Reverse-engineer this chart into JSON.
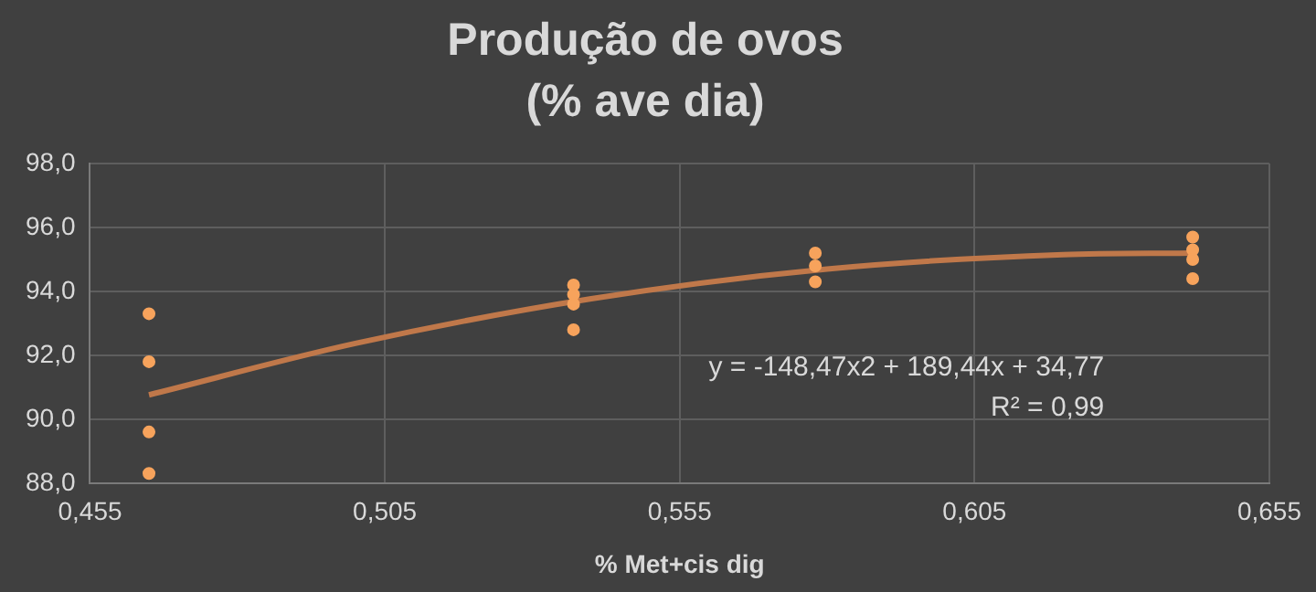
{
  "chart_data": {
    "type": "scatter",
    "title": "Produção de ovos\n(% ave dia)",
    "xlabel": "% Met+cis dig",
    "xlim": [
      0.455,
      0.655
    ],
    "xticks": [
      {
        "value": 0.455,
        "label": "0,455"
      },
      {
        "value": 0.505,
        "label": "0,505"
      },
      {
        "value": 0.555,
        "label": "0,555"
      },
      {
        "value": 0.605,
        "label": "0,605"
      },
      {
        "value": 0.655,
        "label": "0,655"
      }
    ],
    "ylim": [
      88,
      98
    ],
    "yticks": [
      {
        "value": 88,
        "label": "88,0"
      },
      {
        "value": 90,
        "label": "90,0"
      },
      {
        "value": 92,
        "label": "92,0"
      },
      {
        "value": 94,
        "label": "94,0"
      },
      {
        "value": 96,
        "label": "96,0"
      },
      {
        "value": 98,
        "label": "98,0"
      }
    ],
    "grid": true,
    "legend": false,
    "series": [
      {
        "marker": "circle",
        "color": "#f7a35c",
        "x": [
          0.465,
          0.465,
          0.465,
          0.465,
          0.537,
          0.537,
          0.537,
          0.537,
          0.578,
          0.578,
          0.578,
          0.642,
          0.642,
          0.642,
          0.642
        ],
        "values": [
          93.3,
          91.8,
          89.6,
          88.3,
          94.2,
          93.9,
          93.6,
          92.8,
          95.2,
          94.8,
          94.3,
          95.7,
          95.3,
          95.0,
          94.4
        ]
      },
      {
        "type": "line",
        "marker": "none",
        "color": "#c0784a",
        "x": [
          0.465,
          0.5,
          0.54,
          0.58,
          0.62,
          0.642
        ],
        "values": [
          90.76,
          92.37,
          93.77,
          94.7,
          95.15,
          95.2
        ]
      }
    ],
    "annotations": [
      "y = -148,47x2 + 189,44x + 34,77",
      "R² = 0,99"
    ]
  }
}
